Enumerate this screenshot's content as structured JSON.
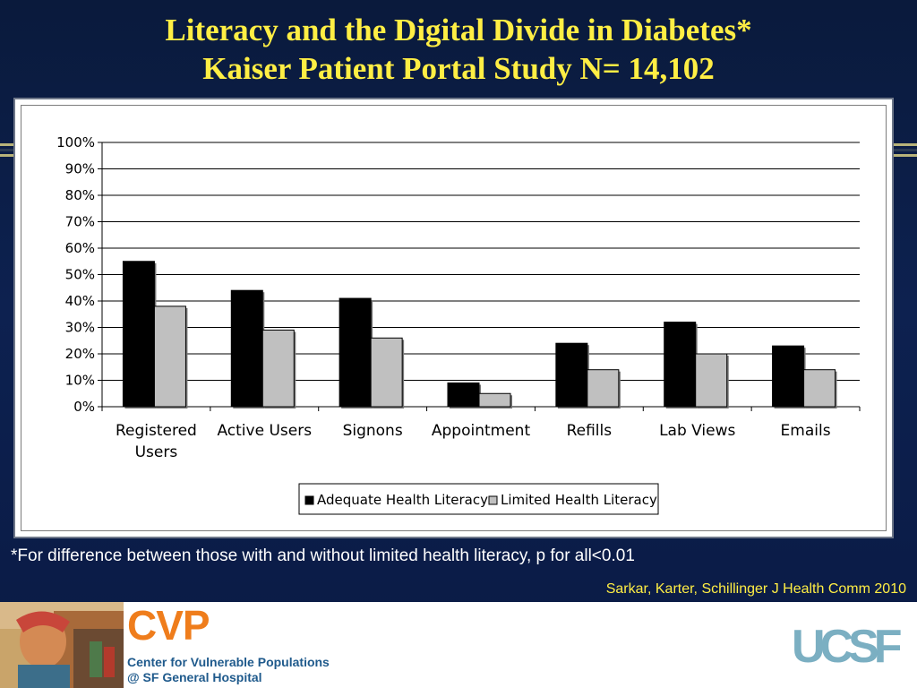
{
  "slide": {
    "title_line1": "Literacy and the Digital Divide in Diabetes*",
    "title_line2": "Kaiser Patient Portal Study N= 14,102",
    "footnote": "*For difference between those with and without limited health literacy, p for all<0.01",
    "citation": "Sarkar, Karter, Schillinger J Health Comm 2010"
  },
  "footer": {
    "cvp_logo": "CVP",
    "cvp_line1": "Center for Vulnerable Populations",
    "cvp_line2": "@ SF General Hospital",
    "ucsf_logo": "UCSF"
  },
  "colors": {
    "background": "#0d2150",
    "title": "#ffee44",
    "adequate": "#000000",
    "limited": "#c0c0c0",
    "cvp_orange": "#ef7d1c",
    "ucsf_teal": "#7bafc2"
  },
  "chart_data": {
    "type": "bar",
    "categories": [
      "Registered Users",
      "Active Users",
      "Signons",
      "Appointment",
      "Refills",
      "Lab Views",
      "Emails"
    ],
    "category_lines": [
      [
        "Registered",
        "Users"
      ],
      [
        "Active Users"
      ],
      [
        "Signons"
      ],
      [
        "Appointment"
      ],
      [
        "Refills"
      ],
      [
        "Lab Views"
      ],
      [
        "Emails"
      ]
    ],
    "series": [
      {
        "name": "Adequate Health Literacy",
        "color": "#000000",
        "values": [
          55,
          44,
          41,
          9,
          24,
          32,
          23
        ]
      },
      {
        "name": "Limited Health Literacy",
        "color": "#c0c0c0",
        "values": [
          38,
          29,
          26,
          5,
          14,
          20,
          14
        ]
      }
    ],
    "ylim": [
      0,
      100
    ],
    "yticks": [
      "0%",
      "10%",
      "20%",
      "30%",
      "40%",
      "50%",
      "60%",
      "70%",
      "80%",
      "90%",
      "100%"
    ],
    "grid": true,
    "legend_position": "bottom"
  }
}
